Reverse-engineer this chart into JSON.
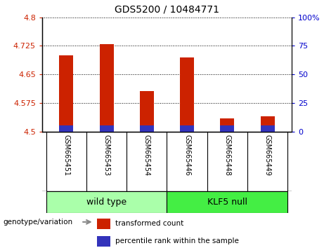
{
  "title": "GDS5200 / 10484771",
  "categories": [
    "GSM665451",
    "GSM665453",
    "GSM665454",
    "GSM665446",
    "GSM665448",
    "GSM665449"
  ],
  "red_values": [
    4.7,
    4.73,
    4.607,
    4.695,
    4.535,
    4.54
  ],
  "blue_values": [
    4.516,
    4.516,
    4.516,
    4.516,
    4.516,
    4.516
  ],
  "baseline": 4.5,
  "ylim_left": [
    4.5,
    4.8
  ],
  "yticks_left": [
    4.5,
    4.575,
    4.65,
    4.725,
    4.8
  ],
  "ytick_labels_left": [
    "4.5",
    "4.575",
    "4.65",
    "4.725",
    "4.8"
  ],
  "ylim_right": [
    0,
    100
  ],
  "yticks_right": [
    0,
    25,
    50,
    75,
    100
  ],
  "right_tick_labels": [
    "0",
    "25",
    "50",
    "75",
    "100%"
  ],
  "left_color": "#cc2200",
  "right_color": "#0000cc",
  "bar_color_red": "#cc2200",
  "bar_color_blue": "#3333bb",
  "wild_type_label": "wild type",
  "klf5_null_label": "KLF5 null",
  "genotype_label": "genotype/variation",
  "legend_red": "transformed count",
  "legend_blue": "percentile rank within the sample",
  "bar_width": 0.35,
  "plot_bg": "#ffffff",
  "tick_area_bg": "#c8c8c8",
  "wt_box_color": "#aaffaa",
  "kl_box_color": "#44ee44",
  "title_fontsize": 10,
  "tick_fontsize": 8,
  "label_fontsize": 8
}
